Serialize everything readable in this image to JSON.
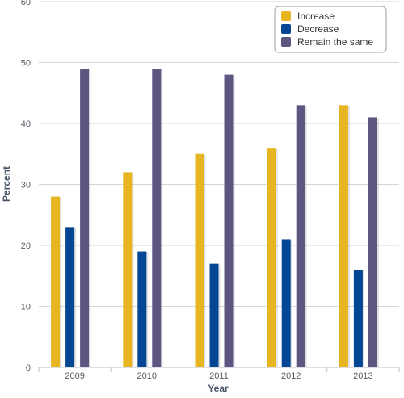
{
  "chart_data": {
    "type": "bar",
    "xlabel": "Year",
    "ylabel": "Percent",
    "categories": [
      "2009",
      "2010",
      "2011",
      "2012",
      "2013"
    ],
    "ylim": [
      0,
      60
    ],
    "yticks": [
      0,
      10,
      20,
      30,
      40,
      50,
      60
    ],
    "grid": true,
    "legend_position": "top-right",
    "series": [
      {
        "name": "Increase",
        "color": "#E6B521",
        "values": [
          28,
          32,
          35,
          36,
          43
        ]
      },
      {
        "name": "Decrease",
        "color": "#034694",
        "values": [
          23,
          19,
          17,
          21,
          16
        ]
      },
      {
        "name": "Remain the same",
        "color": "#5C5680",
        "values": [
          49,
          49,
          48,
          43,
          41
        ]
      }
    ]
  }
}
